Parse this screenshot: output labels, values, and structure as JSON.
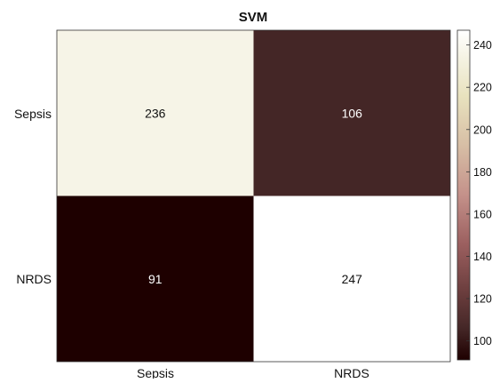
{
  "chart_data": {
    "type": "heatmap",
    "title": "SVM",
    "row_labels": [
      "Sepsis",
      "NRDS"
    ],
    "col_labels": [
      "Sepsis",
      "NRDS"
    ],
    "values": [
      [
        236,
        106
      ],
      [
        91,
        247
      ]
    ],
    "cell_labels": [
      [
        "236",
        "106"
      ],
      [
        "91",
        "247"
      ]
    ],
    "colorbar": {
      "ticks": [
        "100",
        "120",
        "140",
        "160",
        "180",
        "200",
        "220",
        "240"
      ],
      "tick_values": [
        100,
        120,
        140,
        160,
        180,
        200,
        220,
        240
      ],
      "range": [
        91,
        247
      ]
    },
    "colormap": "pink",
    "grid": false
  }
}
